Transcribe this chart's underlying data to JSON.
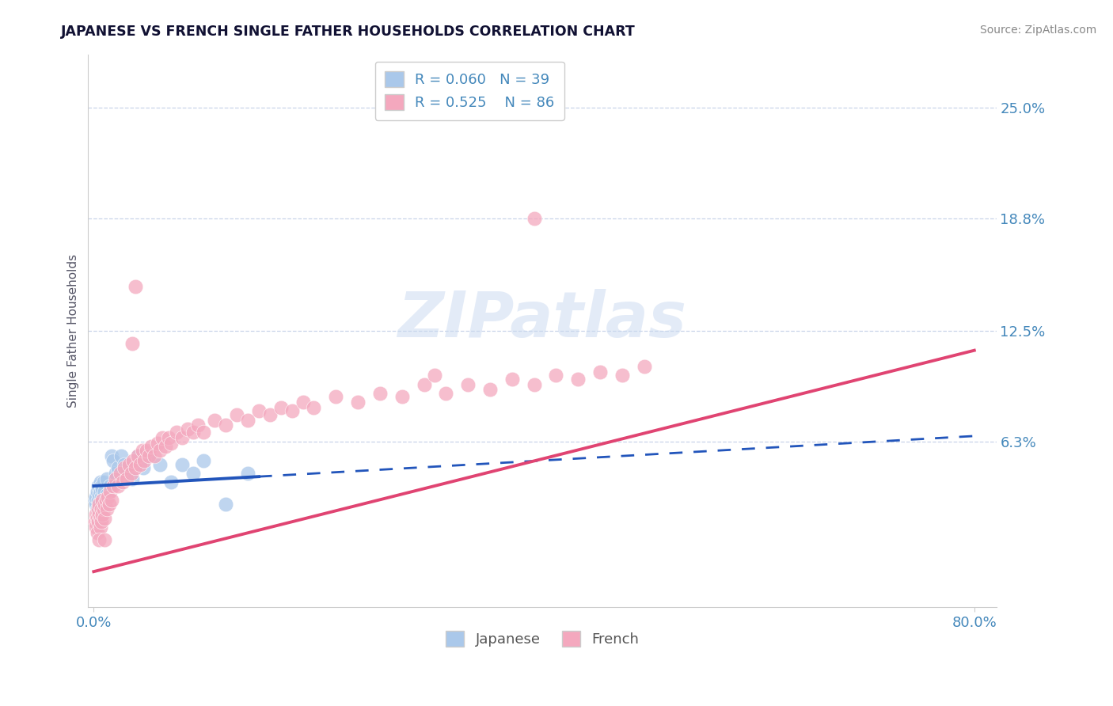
{
  "title": "JAPANESE VS FRENCH SINGLE FATHER HOUSEHOLDS CORRELATION CHART",
  "source": "Source: ZipAtlas.com",
  "ylabel": "Single Father Households",
  "xlim": [
    -0.005,
    0.82
  ],
  "ylim": [
    -0.03,
    0.28
  ],
  "xtick_positions": [
    0.0,
    0.8
  ],
  "xtick_labels": [
    "0.0%",
    "80.0%"
  ],
  "ytick_values": [
    0.25,
    0.188,
    0.125,
    0.063
  ],
  "ytick_labels": [
    "25.0%",
    "18.8%",
    "12.5%",
    "6.3%"
  ],
  "legend_r_japanese": "R = 0.060",
  "legend_n_japanese": "N = 39",
  "legend_r_french": "R = 0.525",
  "legend_n_french": "N = 86",
  "japanese_color": "#aac8ea",
  "french_color": "#f4a8be",
  "japanese_line_color": "#2255bb",
  "french_line_color": "#e04472",
  "background_color": "#ffffff",
  "grid_color": "#c8d4e8",
  "title_color": "#111133",
  "source_color": "#888888",
  "tick_label_color": "#4488bb",
  "watermark_text": "ZIPatlas",
  "watermark_color": "#c8d8f0",
  "japanese_points": [
    [
      0.001,
      0.03
    ],
    [
      0.002,
      0.028
    ],
    [
      0.002,
      0.032
    ],
    [
      0.003,
      0.035
    ],
    [
      0.003,
      0.025
    ],
    [
      0.004,
      0.038
    ],
    [
      0.004,
      0.03
    ],
    [
      0.005,
      0.033
    ],
    [
      0.005,
      0.028
    ],
    [
      0.006,
      0.04
    ],
    [
      0.006,
      0.035
    ],
    [
      0.007,
      0.032
    ],
    [
      0.007,
      0.038
    ],
    [
      0.008,
      0.03
    ],
    [
      0.008,
      0.036
    ],
    [
      0.009,
      0.04
    ],
    [
      0.01,
      0.035
    ],
    [
      0.01,
      0.028
    ],
    [
      0.012,
      0.042
    ],
    [
      0.012,
      0.033
    ],
    [
      0.015,
      0.038
    ],
    [
      0.016,
      0.055
    ],
    [
      0.018,
      0.052
    ],
    [
      0.02,
      0.045
    ],
    [
      0.022,
      0.048
    ],
    [
      0.025,
      0.055
    ],
    [
      0.028,
      0.05
    ],
    [
      0.03,
      0.048
    ],
    [
      0.035,
      0.042
    ],
    [
      0.04,
      0.055
    ],
    [
      0.045,
      0.048
    ],
    [
      0.05,
      0.055
    ],
    [
      0.06,
      0.05
    ],
    [
      0.07,
      0.04
    ],
    [
      0.08,
      0.05
    ],
    [
      0.09,
      0.045
    ],
    [
      0.1,
      0.052
    ],
    [
      0.12,
      0.028
    ],
    [
      0.14,
      0.045
    ]
  ],
  "french_points": [
    [
      0.001,
      0.018
    ],
    [
      0.002,
      0.015
    ],
    [
      0.002,
      0.022
    ],
    [
      0.003,
      0.02
    ],
    [
      0.003,
      0.012
    ],
    [
      0.004,
      0.025
    ],
    [
      0.004,
      0.018
    ],
    [
      0.005,
      0.022
    ],
    [
      0.005,
      0.028
    ],
    [
      0.006,
      0.02
    ],
    [
      0.006,
      0.015
    ],
    [
      0.007,
      0.025
    ],
    [
      0.007,
      0.018
    ],
    [
      0.008,
      0.022
    ],
    [
      0.008,
      0.03
    ],
    [
      0.009,
      0.025
    ],
    [
      0.01,
      0.028
    ],
    [
      0.01,
      0.02
    ],
    [
      0.011,
      0.03
    ],
    [
      0.012,
      0.025
    ],
    [
      0.013,
      0.032
    ],
    [
      0.014,
      0.028
    ],
    [
      0.015,
      0.035
    ],
    [
      0.016,
      0.03
    ],
    [
      0.018,
      0.038
    ],
    [
      0.02,
      0.042
    ],
    [
      0.022,
      0.038
    ],
    [
      0.024,
      0.045
    ],
    [
      0.026,
      0.04
    ],
    [
      0.028,
      0.048
    ],
    [
      0.03,
      0.042
    ],
    [
      0.032,
      0.05
    ],
    [
      0.034,
      0.045
    ],
    [
      0.036,
      0.052
    ],
    [
      0.038,
      0.048
    ],
    [
      0.04,
      0.055
    ],
    [
      0.042,
      0.05
    ],
    [
      0.044,
      0.058
    ],
    [
      0.046,
      0.052
    ],
    [
      0.048,
      0.058
    ],
    [
      0.05,
      0.055
    ],
    [
      0.052,
      0.06
    ],
    [
      0.055,
      0.055
    ],
    [
      0.058,
      0.062
    ],
    [
      0.06,
      0.058
    ],
    [
      0.062,
      0.065
    ],
    [
      0.065,
      0.06
    ],
    [
      0.068,
      0.065
    ],
    [
      0.07,
      0.062
    ],
    [
      0.075,
      0.068
    ],
    [
      0.08,
      0.065
    ],
    [
      0.085,
      0.07
    ],
    [
      0.09,
      0.068
    ],
    [
      0.095,
      0.072
    ],
    [
      0.1,
      0.068
    ],
    [
      0.11,
      0.075
    ],
    [
      0.12,
      0.072
    ],
    [
      0.13,
      0.078
    ],
    [
      0.14,
      0.075
    ],
    [
      0.15,
      0.08
    ],
    [
      0.16,
      0.078
    ],
    [
      0.17,
      0.082
    ],
    [
      0.18,
      0.08
    ],
    [
      0.19,
      0.085
    ],
    [
      0.2,
      0.082
    ],
    [
      0.22,
      0.088
    ],
    [
      0.24,
      0.085
    ],
    [
      0.26,
      0.09
    ],
    [
      0.28,
      0.088
    ],
    [
      0.3,
      0.095
    ],
    [
      0.32,
      0.09
    ],
    [
      0.34,
      0.095
    ],
    [
      0.36,
      0.092
    ],
    [
      0.38,
      0.098
    ],
    [
      0.4,
      0.095
    ],
    [
      0.42,
      0.1
    ],
    [
      0.44,
      0.098
    ],
    [
      0.46,
      0.102
    ],
    [
      0.48,
      0.1
    ],
    [
      0.5,
      0.105
    ],
    [
      0.038,
      0.15
    ],
    [
      0.4,
      0.188
    ],
    [
      0.035,
      0.118
    ],
    [
      0.31,
      0.1
    ],
    [
      0.005,
      0.008
    ],
    [
      0.01,
      0.008
    ]
  ],
  "jp_line_x_solid_end": 0.15,
  "fr_line_x_end": 0.8,
  "jp_line_slope": 0.035,
  "jp_line_intercept": 0.038,
  "fr_line_slope": 0.155,
  "fr_line_intercept": -0.01
}
